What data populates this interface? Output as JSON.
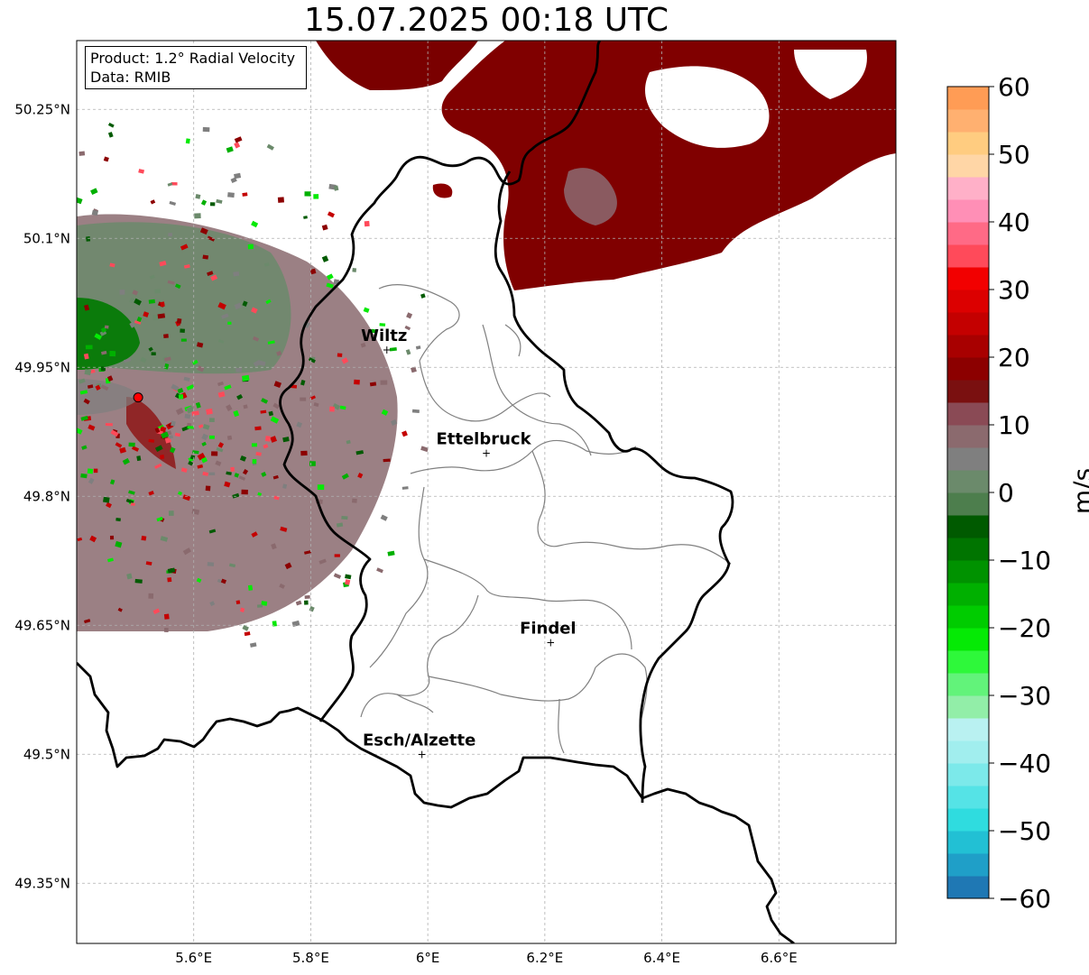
{
  "title": "15.07.2025 00:18 UTC",
  "info": {
    "product": "Product: 1.2° Radial Velocity",
    "data": "Data: RMIB"
  },
  "axes": {
    "lat_ticks": [
      "50.25°N",
      "50.1°N",
      "49.95°N",
      "49.8°N",
      "49.65°N",
      "49.5°N",
      "49.35°N"
    ],
    "lon_ticks": [
      "5.6°E",
      "5.8°E",
      "6°E",
      "6.2°E",
      "6.4°E",
      "6.6°E"
    ]
  },
  "cities": [
    {
      "name": "Wiltz",
      "lon": 5.93,
      "lat": 49.97
    },
    {
      "name": "Ettelbruck",
      "lon": 6.1,
      "lat": 49.85
    },
    {
      "name": "Findel",
      "lon": 6.21,
      "lat": 49.63
    },
    {
      "name": "Esch/Alzette",
      "lon": 5.99,
      "lat": 49.5
    }
  ],
  "radar_site": {
    "lon": 5.505,
    "lat": 49.915,
    "color": "#ff0000"
  },
  "colorbar": {
    "unit": "m/s",
    "ticks": [
      "60",
      "50",
      "40",
      "30",
      "20",
      "10",
      "0",
      "−10",
      "−20",
      "−30",
      "−40",
      "−50",
      "−60"
    ],
    "min": -60,
    "max": 60,
    "colors": [
      "#1f78b4",
      "#1f9fc8",
      "#22c0d4",
      "#2fdcdf",
      "#55e3e6",
      "#7ce9ea",
      "#a1eeee",
      "#b9f1f1",
      "#92eea8",
      "#62f37a",
      "#2ef83a",
      "#05ea05",
      "#00cc00",
      "#00b000",
      "#009200",
      "#007400",
      "#005a00",
      "#4d7e4d",
      "#6b8a6b",
      "#7f7f7f",
      "#8b6a6e",
      "#8a4a55",
      "#7a1010",
      "#8c0000",
      "#a80000",
      "#c40000",
      "#dc0000",
      "#f20000",
      "#ff4a5a",
      "#ff6a86",
      "#ff8fb6",
      "#ffb0c8",
      "#ffd6a6",
      "#ffcc80",
      "#ffb070",
      "#ff9c55"
    ]
  }
}
